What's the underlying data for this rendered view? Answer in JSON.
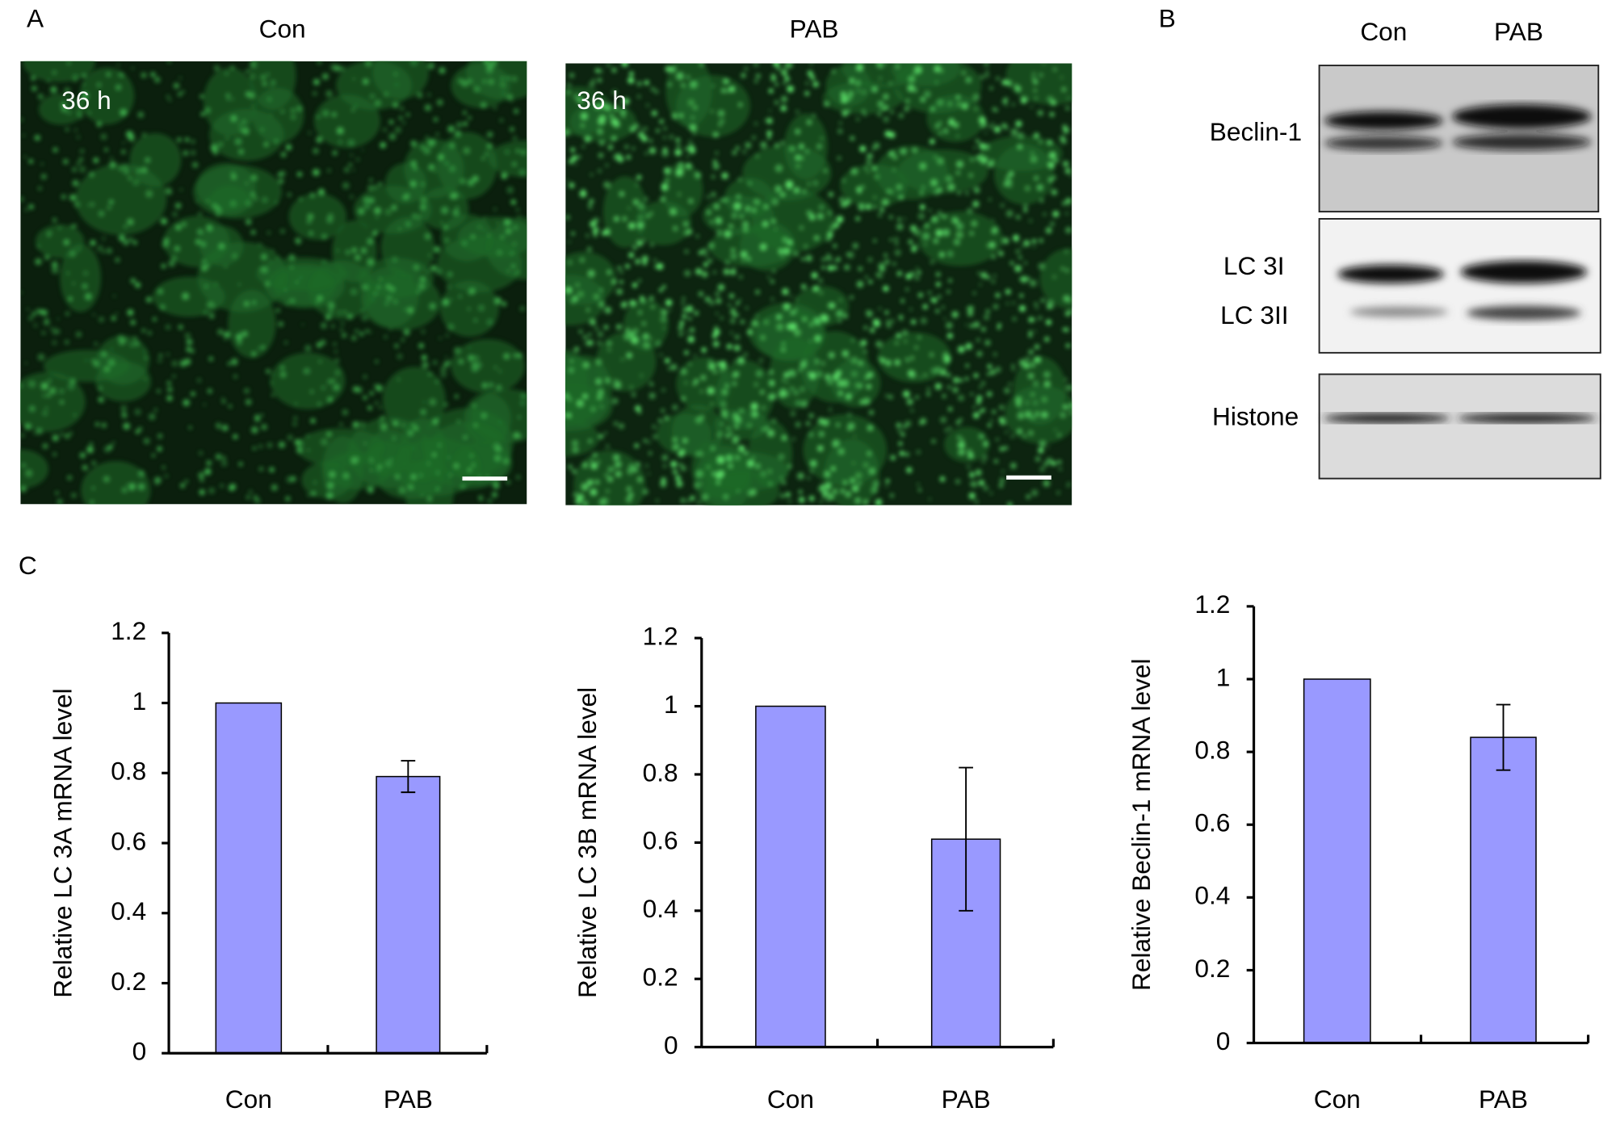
{
  "panels": {
    "a": {
      "letter": "A",
      "con": "Con",
      "pab": "PAB",
      "time_con": "36 h",
      "time_pab": "36 h"
    },
    "b": {
      "letter": "B",
      "con": "Con",
      "pab": "PAB",
      "bands": [
        "Beclin-1",
        "LC 3I",
        "LC 3II",
        "Histone"
      ]
    },
    "c": {
      "letter": "C"
    }
  },
  "chart_data": [
    {
      "type": "bar",
      "y_label": "Relative LC 3A mRNA level",
      "categories": [
        "Con",
        "PAB"
      ],
      "series": [
        {
          "color": "#9999ff",
          "values": [
            1,
            0.79
          ],
          "errors": [
            0,
            0.045
          ]
        }
      ],
      "ylim": [
        0,
        1.2
      ],
      "yticks": [
        0,
        0.2,
        0.4,
        0.6,
        0.8,
        1,
        1.2
      ],
      "grid": false
    },
    {
      "type": "bar",
      "y_label": "Relative LC 3B mRNA level",
      "categories": [
        "Con",
        "PAB"
      ],
      "series": [
        {
          "color": "#9999ff",
          "values": [
            1,
            0.61
          ],
          "errors": [
            0,
            0.21
          ]
        }
      ],
      "ylim": [
        0,
        1.2
      ],
      "yticks": [
        0,
        0.2,
        0.4,
        0.6,
        0.8,
        1,
        1.2
      ],
      "grid": false
    },
    {
      "type": "bar",
      "y_label": "Relative Beclin-1 mRNA level",
      "categories": [
        "Con",
        "PAB"
      ],
      "series": [
        {
          "color": "#9999ff",
          "values": [
            1,
            0.84
          ],
          "errors": [
            0,
            0.09
          ]
        }
      ],
      "ylim": [
        0,
        1.2
      ],
      "yticks": [
        0,
        0.2,
        0.4,
        0.6,
        0.8,
        1,
        1.2
      ],
      "grid": false
    }
  ]
}
